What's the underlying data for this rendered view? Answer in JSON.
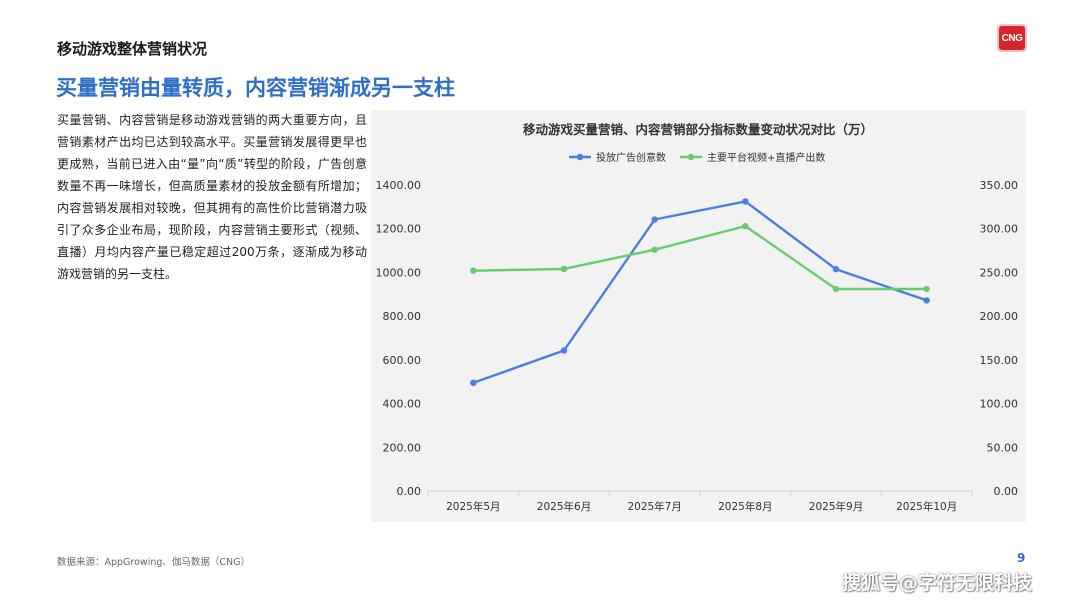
{
  "section_title": "移动游戏整体营销状况",
  "logo_text": "CNG",
  "headline": "买量营销由量转质，内容营销渐成另一支柱",
  "body_text": "买量营销、内容营销是移动游戏营销的两大重要方向，且营销素材产出均已达到较高水平。买量营销发展得更早也更成熟，当前已进入由“量”向“质”转型的阶段，广告创意数量不再一味增长，但高质量素材的投放金额有所增加；内容营销发展相对较晚，但其拥有的高性价比营销潜力吸引了众多企业布局，现阶段，内容营销主要形式（视频、直播）月均内容产量已稳定超过200万条，逐渐成为移动游戏营销的另一支柱。",
  "source": "数据来源：AppGrowing、伽马数据（CNG）",
  "page_number": "9",
  "watermark": "搜狐号@字符无限科技",
  "chart_data": {
    "type": "line",
    "title": "移动游戏买量营销、内容营销部分指标数量变动状况对比（万）",
    "categories": [
      "2025年5月",
      "2025年6月",
      "2025年7月",
      "2025年8月",
      "2025年9月",
      "2025年10月"
    ],
    "series": [
      {
        "name": "投放广告创意数",
        "axis": "left",
        "color": "#4a7fe0",
        "values": [
          495,
          643,
          1242,
          1325,
          1015,
          872
        ]
      },
      {
        "name": "主要平台视频+直播产出数",
        "axis": "right",
        "color": "#66cc6e",
        "values": [
          252,
          254,
          276,
          303,
          231,
          231
        ]
      }
    ],
    "y_left": {
      "min": 0,
      "max": 1400,
      "ticks": [
        "0.00",
        "200.00",
        "400.00",
        "600.00",
        "800.00",
        "1000.00",
        "1200.00",
        "1400.00"
      ]
    },
    "y_right": {
      "min": 0,
      "max": 350,
      "ticks": [
        "0.00",
        "50.00",
        "100.00",
        "150.00",
        "200.00",
        "250.00",
        "300.00",
        "350.00"
      ]
    },
    "legend_position": "top",
    "grid": false
  }
}
